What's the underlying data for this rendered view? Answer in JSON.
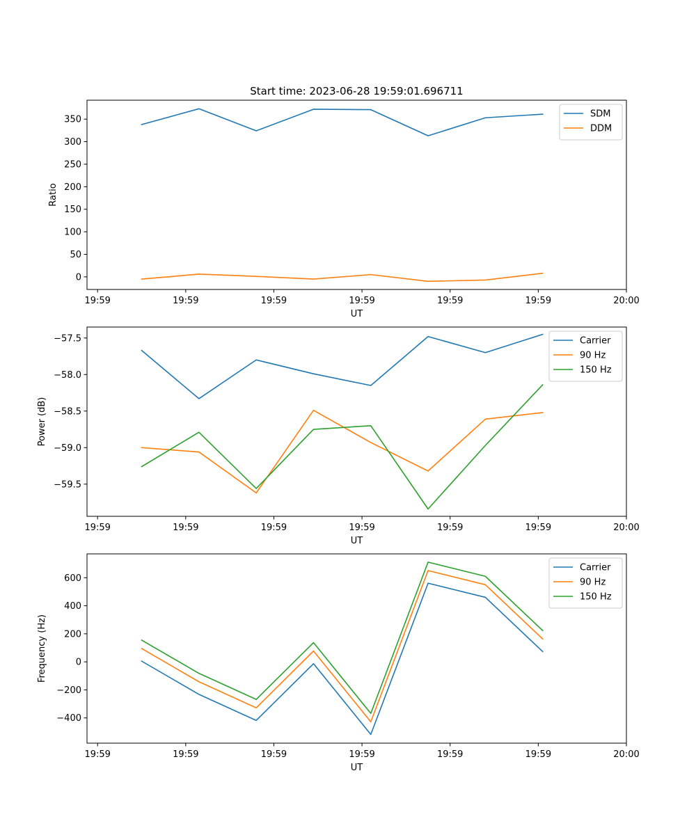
{
  "chart_data": [
    {
      "type": "line",
      "title": "Start time: 2023-06-28 19:59:01.696711",
      "xlabel": "UT",
      "ylabel": "Ratio",
      "x_tick_labels": [
        "19:59",
        "19:59",
        "19:59",
        "19:59",
        "19:59",
        "19:59",
        "20:00"
      ],
      "x": [
        0.5,
        1.15,
        1.8,
        2.45,
        3.1,
        3.75,
        4.4,
        5.05
      ],
      "xlim": [
        -0.12,
        6.0
      ],
      "ylim": [
        -28,
        392
      ],
      "yticks": [
        0,
        50,
        100,
        150,
        200,
        250,
        300,
        350
      ],
      "legend": "top-right",
      "series": [
        {
          "name": "SDM",
          "color": "#1f77b4",
          "values": [
            338,
            373,
            324,
            372,
            371,
            313,
            353,
            361
          ]
        },
        {
          "name": "DDM",
          "color": "#ff7f0e",
          "values": [
            -5,
            6,
            1,
            -5,
            5,
            -10,
            -7,
            8
          ]
        }
      ]
    },
    {
      "type": "line",
      "title": "",
      "xlabel": "UT",
      "ylabel": "Power (dB)",
      "x_tick_labels": [
        "19:59",
        "19:59",
        "19:59",
        "19:59",
        "19:59",
        "19:59",
        "20:00"
      ],
      "x": [
        0.5,
        1.15,
        1.8,
        2.45,
        3.1,
        3.75,
        4.4,
        5.05
      ],
      "xlim": [
        -0.12,
        6.0
      ],
      "ylim": [
        -59.94,
        -57.35
      ],
      "yticks": [
        -59.5,
        -59.0,
        -58.5,
        -58.0,
        -57.5
      ],
      "yticklabels": [
        "−59.5",
        "−59.0",
        "−58.5",
        "−58.0",
        "−57.5"
      ],
      "legend": "top-right",
      "series": [
        {
          "name": "Carrier",
          "color": "#1f77b4",
          "values": [
            -57.67,
            -58.33,
            -57.8,
            -57.99,
            -58.15,
            -57.48,
            -57.7,
            -57.45
          ]
        },
        {
          "name": "90 Hz",
          "color": "#ff7f0e",
          "values": [
            -59.0,
            -59.06,
            -59.62,
            -58.49,
            -58.93,
            -59.32,
            -58.61,
            -58.52
          ]
        },
        {
          "name": "150 Hz",
          "color": "#2ca02c",
          "values": [
            -59.26,
            -58.79,
            -59.56,
            -58.75,
            -58.7,
            -59.84,
            -58.97,
            -58.14
          ]
        }
      ]
    },
    {
      "type": "line",
      "title": "",
      "xlabel": "UT",
      "ylabel": "Frequency (Hz)",
      "x_tick_labels": [
        "19:59",
        "19:59",
        "19:59",
        "19:59",
        "19:59",
        "19:59",
        "20:00"
      ],
      "x": [
        0.5,
        1.15,
        1.8,
        2.45,
        3.1,
        3.75,
        4.4,
        5.05
      ],
      "xlim": [
        -0.12,
        6.0
      ],
      "ylim": [
        -580,
        770
      ],
      "yticks": [
        -400,
        -200,
        0,
        200,
        400,
        600
      ],
      "yticklabels": [
        "−400",
        "−200",
        "0",
        "200",
        "400",
        "600"
      ],
      "legend": "top-right",
      "series": [
        {
          "name": "Carrier",
          "color": "#1f77b4",
          "values": [
            5,
            -232,
            -418,
            -13,
            -518,
            561,
            460,
            73
          ]
        },
        {
          "name": "90 Hz",
          "color": "#ff7f0e",
          "values": [
            95,
            -142,
            -328,
            77,
            -428,
            651,
            550,
            163
          ]
        },
        {
          "name": "150 Hz",
          "color": "#2ca02c",
          "values": [
            155,
            -82,
            -268,
            137,
            -368,
            711,
            610,
            223
          ]
        }
      ]
    }
  ]
}
